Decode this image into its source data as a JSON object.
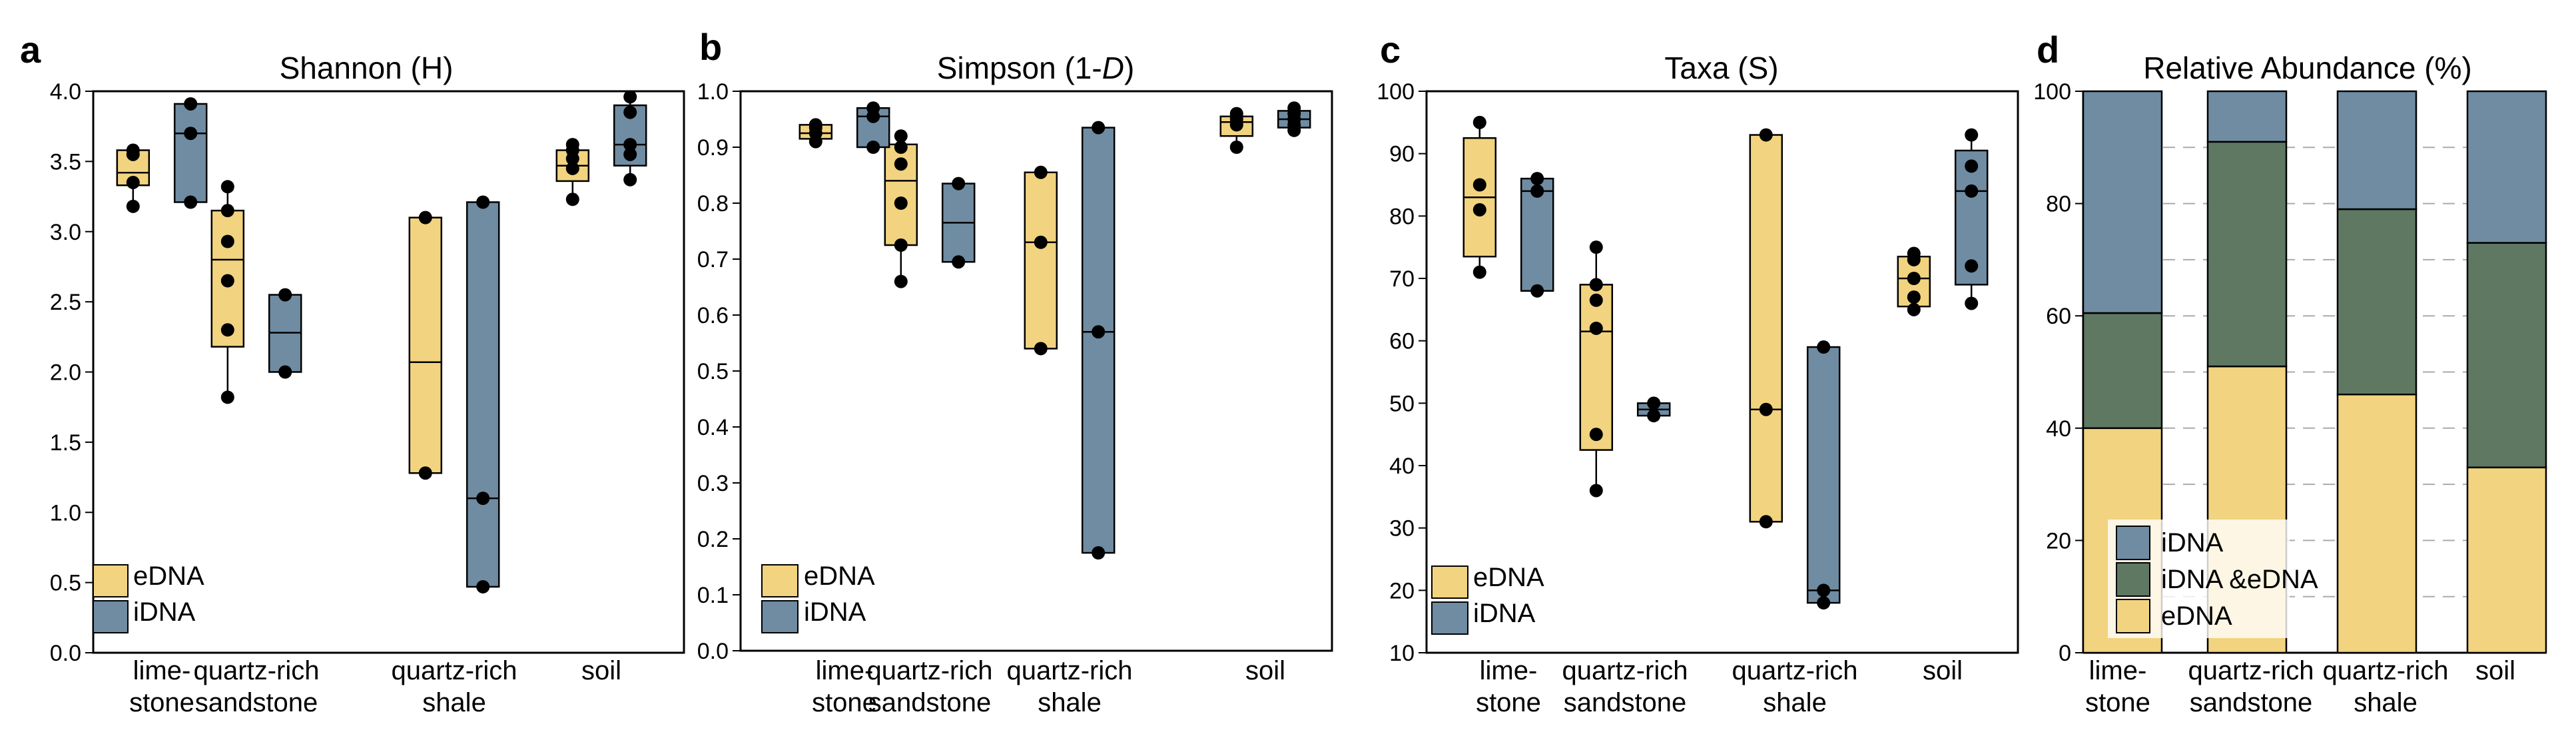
{
  "colors": {
    "eDNA": "#f2d37f",
    "iDNA": "#6f8ca2",
    "both": "#5f7862",
    "edge": "#000000",
    "grid": "#aaaaaa"
  },
  "legend": {
    "edna": "eDNA",
    "idna": "iDNA",
    "both": "iDNA &eDNA"
  },
  "chart_data": [
    {
      "panel": "a",
      "type": "box",
      "title": "Shannon (H)",
      "ylim": [
        0,
        4.0
      ],
      "yticks": [
        "0.0",
        "0.5",
        "1.0",
        "1.5",
        "2.0",
        "2.5",
        "3.0",
        "3.5",
        "4.0"
      ],
      "categories": [
        [
          "lime-",
          "stone"
        ],
        [
          "quartz-rich",
          "sandstone"
        ],
        [
          "quartz-rich",
          "shale"
        ],
        [
          "soil"
        ]
      ],
      "series": [
        {
          "name": "eDNA",
          "boxes": [
            {
              "q1": 3.33,
              "median": 3.42,
              "q3": 3.58,
              "whisker_low": 3.18,
              "whisker_high": 3.58,
              "points": [
                3.18,
                3.35,
                3.55,
                3.58
              ]
            },
            {
              "q1": 2.18,
              "median": 2.8,
              "q3": 3.15,
              "whisker_low": 1.82,
              "whisker_high": 3.32,
              "points": [
                1.82,
                2.3,
                2.65,
                2.93,
                3.15,
                3.32
              ]
            },
            {
              "q1": 1.28,
              "median": 2.07,
              "q3": 3.1,
              "whisker_low": 1.28,
              "whisker_high": 3.1,
              "points": [
                1.28,
                3.1
              ]
            },
            {
              "q1": 3.36,
              "median": 3.47,
              "q3": 3.58,
              "whisker_low": 3.23,
              "whisker_high": 3.62,
              "points": [
                3.23,
                3.45,
                3.52,
                3.58,
                3.62
              ]
            }
          ]
        },
        {
          "name": "iDNA",
          "boxes": [
            {
              "q1": 3.21,
              "median": 3.7,
              "q3": 3.91,
              "whisker_low": 3.21,
              "whisker_high": 3.91,
              "points": [
                3.21,
                3.7,
                3.91
              ]
            },
            {
              "q1": 2.0,
              "median": 2.28,
              "q3": 2.55,
              "whisker_low": 2.0,
              "whisker_high": 2.55,
              "points": [
                2.0,
                2.55
              ]
            },
            {
              "q1": 0.47,
              "median": 1.1,
              "q3": 3.21,
              "whisker_low": 0.47,
              "whisker_high": 3.21,
              "points": [
                0.47,
                1.1,
                3.21
              ]
            },
            {
              "q1": 3.47,
              "median": 3.62,
              "q3": 3.9,
              "whisker_low": 3.37,
              "whisker_high": 3.96,
              "points": [
                3.37,
                3.55,
                3.62,
                3.85,
                3.96
              ]
            }
          ]
        }
      ]
    },
    {
      "panel": "b",
      "type": "box",
      "title_prefix": "Simpson (1-",
      "title_italic": "D",
      "title_suffix": ")",
      "ylim": [
        0,
        1.0
      ],
      "yticks": [
        "0.0",
        "0.1",
        "0.2",
        "0.3",
        "0.4",
        "0.5",
        "0.6",
        "0.7",
        "0.8",
        "0.9",
        "1.0"
      ],
      "categories": [
        [
          "lime-",
          "stone"
        ],
        [
          "quartz-rich",
          "sandstone"
        ],
        [
          "quartz-rich",
          "shale"
        ],
        [
          "soil"
        ]
      ],
      "series": [
        {
          "name": "eDNA",
          "boxes": [
            {
              "q1": 0.915,
              "median": 0.925,
              "q3": 0.94,
              "whisker_low": 0.91,
              "whisker_high": 0.94,
              "points": [
                0.91,
                0.925,
                0.935,
                0.94
              ]
            },
            {
              "q1": 0.725,
              "median": 0.84,
              "q3": 0.905,
              "whisker_low": 0.66,
              "whisker_high": 0.92,
              "points": [
                0.66,
                0.725,
                0.8,
                0.87,
                0.9,
                0.92
              ]
            },
            {
              "q1": 0.54,
              "median": 0.73,
              "q3": 0.855,
              "whisker_low": 0.54,
              "whisker_high": 0.855,
              "points": [
                0.54,
                0.73,
                0.855
              ]
            },
            {
              "q1": 0.92,
              "median": 0.945,
              "q3": 0.955,
              "whisker_low": 0.9,
              "whisker_high": 0.96,
              "points": [
                0.9,
                0.94,
                0.95,
                0.955,
                0.96
              ]
            }
          ]
        },
        {
          "name": "iDNA",
          "boxes": [
            {
              "q1": 0.9,
              "median": 0.955,
              "q3": 0.97,
              "whisker_low": 0.9,
              "whisker_high": 0.97,
              "points": [
                0.9,
                0.955,
                0.97
              ]
            },
            {
              "q1": 0.695,
              "median": 0.765,
              "q3": 0.835,
              "whisker_low": 0.695,
              "whisker_high": 0.835,
              "points": [
                0.695,
                0.835
              ]
            },
            {
              "q1": 0.175,
              "median": 0.57,
              "q3": 0.935,
              "whisker_low": 0.175,
              "whisker_high": 0.935,
              "points": [
                0.175,
                0.57,
                0.935
              ]
            },
            {
              "q1": 0.935,
              "median": 0.95,
              "q3": 0.965,
              "whisker_low": 0.93,
              "whisker_high": 0.97,
              "points": [
                0.93,
                0.94,
                0.95,
                0.96,
                0.97
              ]
            }
          ]
        }
      ]
    },
    {
      "panel": "c",
      "type": "box",
      "title": "Taxa (S)",
      "ylim": [
        10,
        100
      ],
      "yticks": [
        "10",
        "20",
        "30",
        "40",
        "50",
        "60",
        "70",
        "80",
        "90",
        "100"
      ],
      "categories": [
        [
          "lime-",
          "stone"
        ],
        [
          "quartz-rich",
          "sandstone"
        ],
        [
          "quartz-rich",
          "shale"
        ],
        [
          "soil"
        ]
      ],
      "series": [
        {
          "name": "eDNA",
          "boxes": [
            {
              "q1": 73.5,
              "median": 83,
              "q3": 92.5,
              "whisker_low": 71,
              "whisker_high": 95,
              "points": [
                71,
                81,
                85,
                95
              ]
            },
            {
              "q1": 42.5,
              "median": 61.5,
              "q3": 69,
              "whisker_low": 36,
              "whisker_high": 75,
              "points": [
                36,
                45,
                62,
                66.5,
                69,
                75
              ]
            },
            {
              "q1": 31,
              "median": 49,
              "q3": 93,
              "whisker_low": 31,
              "whisker_high": 93,
              "points": [
                31,
                49,
                93
              ]
            },
            {
              "q1": 65.5,
              "median": 70,
              "q3": 73.5,
              "whisker_low": 65,
              "whisker_high": 74,
              "points": [
                65,
                67,
                70,
                73,
                74
              ]
            }
          ]
        },
        {
          "name": "iDNA",
          "boxes": [
            {
              "q1": 68,
              "median": 84,
              "q3": 86,
              "whisker_low": 68,
              "whisker_high": 86,
              "points": [
                68,
                84,
                86
              ]
            },
            {
              "q1": 48,
              "median": 49,
              "q3": 50,
              "whisker_low": 48,
              "whisker_high": 50,
              "points": [
                48,
                50
              ]
            },
            {
              "q1": 18,
              "median": 20,
              "q3": 59,
              "whisker_low": 18,
              "whisker_high": 59,
              "points": [
                18,
                20,
                59
              ]
            },
            {
              "q1": 69,
              "median": 84,
              "q3": 90.5,
              "whisker_low": 66,
              "whisker_high": 93,
              "points": [
                66,
                72,
                84,
                88,
                93
              ]
            }
          ]
        }
      ]
    },
    {
      "panel": "d",
      "type": "stacked_bar",
      "title": "Relative Abundance (%)",
      "ylim": [
        0,
        100
      ],
      "yticks": [
        "0",
        "20",
        "40",
        "60",
        "80",
        "100"
      ],
      "gridlines": [
        10,
        20,
        30,
        40,
        50,
        60,
        70,
        80,
        90
      ],
      "categories": [
        [
          "lime-",
          "stone"
        ],
        [
          "quartz-rich",
          "sandstone"
        ],
        [
          "quartz-rich",
          "shale"
        ],
        [
          "soil"
        ]
      ],
      "series": [
        {
          "name": "eDNA",
          "values": [
            40,
            51,
            46,
            33
          ]
        },
        {
          "name": "iDNA &eDNA",
          "values": [
            20.5,
            40,
            33,
            40
          ]
        },
        {
          "name": "iDNA",
          "values": [
            39.5,
            9,
            21,
            27
          ]
        }
      ]
    }
  ]
}
